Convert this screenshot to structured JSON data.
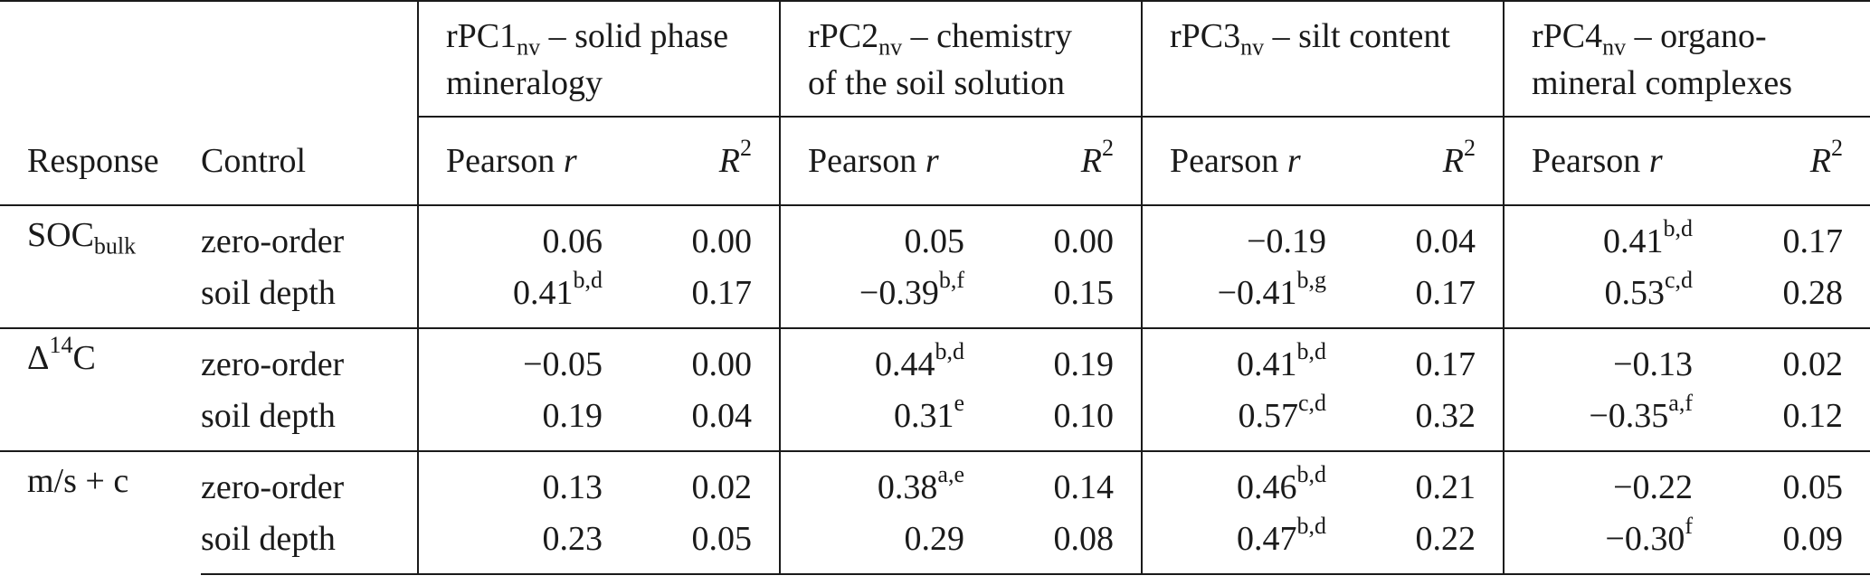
{
  "header": {
    "groups": [
      {
        "base": "rPC1",
        "sub": "nv",
        "desc": " – solid phase mineralogy"
      },
      {
        "base": "rPC2",
        "sub": "nv",
        "desc": " – chemistry of the soil solution"
      },
      {
        "base": "rPC3",
        "sub": "nv",
        "desc": " – silt content"
      },
      {
        "base": "rPC4",
        "sub": "nv",
        "desc": " – organo-mineral complexes"
      }
    ],
    "response": "Response",
    "control": "Control",
    "pearson_prefix": "Pearson ",
    "pearson_var": "r",
    "r2_var": "R",
    "r2_sup": "2"
  },
  "rows": [
    {
      "response_base": "SOC",
      "response_sub": "bulk",
      "response_sup": "",
      "response_tail": "",
      "items": [
        {
          "control": "zero-order",
          "cells": [
            {
              "v": "0.06",
              "s": ""
            },
            {
              "v": "0.00"
            },
            {
              "v": "0.05",
              "s": ""
            },
            {
              "v": "0.00"
            },
            {
              "v": "−0.19",
              "s": ""
            },
            {
              "v": "0.04"
            },
            {
              "v": "0.41",
              "s": "b,d"
            },
            {
              "v": "0.17"
            }
          ]
        },
        {
          "control": "soil depth",
          "cells": [
            {
              "v": "0.41",
              "s": "b,d"
            },
            {
              "v": "0.17"
            },
            {
              "v": "−0.39",
              "s": "b,f"
            },
            {
              "v": "0.15"
            },
            {
              "v": "−0.41",
              "s": "b,g"
            },
            {
              "v": "0.17"
            },
            {
              "v": "0.53",
              "s": "c,d"
            },
            {
              "v": "0.28"
            }
          ]
        }
      ]
    },
    {
      "response_base": "Δ",
      "response_sub": "",
      "response_sup": "14",
      "response_tail": "C",
      "items": [
        {
          "control": "zero-order",
          "cells": [
            {
              "v": "−0.05",
              "s": ""
            },
            {
              "v": "0.00"
            },
            {
              "v": "0.44",
              "s": "b,d"
            },
            {
              "v": "0.19"
            },
            {
              "v": "0.41",
              "s": "b,d"
            },
            {
              "v": "0.17"
            },
            {
              "v": "−0.13",
              "s": ""
            },
            {
              "v": "0.02"
            }
          ]
        },
        {
          "control": "soil depth",
          "cells": [
            {
              "v": "0.19",
              "s": ""
            },
            {
              "v": "0.04"
            },
            {
              "v": "0.31",
              "s": "e"
            },
            {
              "v": "0.10"
            },
            {
              "v": "0.57",
              "s": "c,d"
            },
            {
              "v": "0.32"
            },
            {
              "v": "−0.35",
              "s": "a,f"
            },
            {
              "v": "0.12"
            }
          ]
        }
      ]
    },
    {
      "response_base": "m/s + c",
      "response_sub": "",
      "response_sup": "",
      "response_tail": "",
      "items": [
        {
          "control": "zero-order",
          "cells": [
            {
              "v": "0.13",
              "s": ""
            },
            {
              "v": "0.02"
            },
            {
              "v": "0.38",
              "s": "a,e"
            },
            {
              "v": "0.14"
            },
            {
              "v": "0.46",
              "s": "b,d"
            },
            {
              "v": "0.21"
            },
            {
              "v": "−0.22",
              "s": ""
            },
            {
              "v": "0.05"
            }
          ]
        },
        {
          "control": "soil depth",
          "cells": [
            {
              "v": "0.23",
              "s": ""
            },
            {
              "v": "0.05"
            },
            {
              "v": "0.29",
              "s": ""
            },
            {
              "v": "0.08"
            },
            {
              "v": "0.47",
              "s": "b,d"
            },
            {
              "v": "0.22"
            },
            {
              "v": "−0.30",
              "s": "f"
            },
            {
              "v": "0.09"
            }
          ]
        }
      ]
    }
  ]
}
